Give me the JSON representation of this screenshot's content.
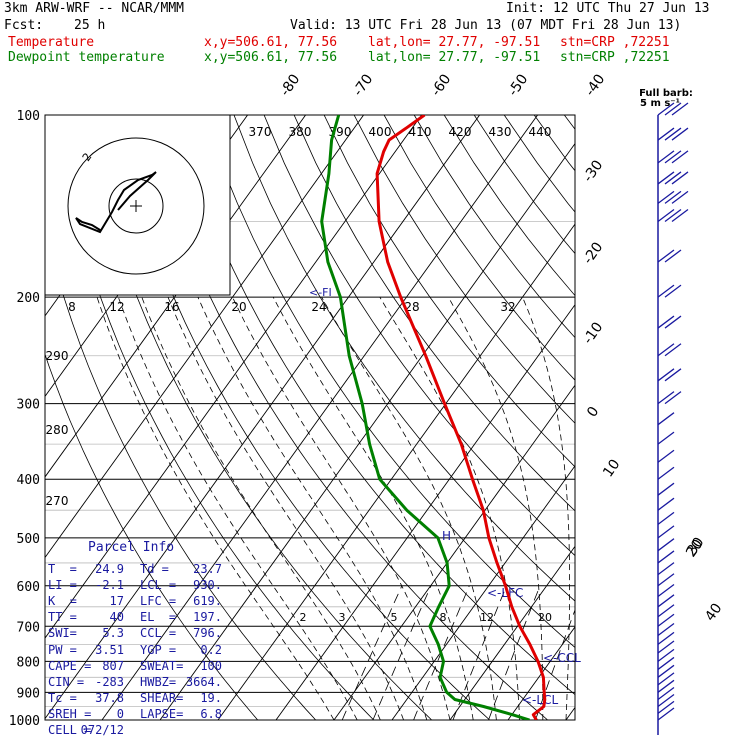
{
  "header": {
    "model": "3km ARW-WRF -- NCAR/MMM",
    "init": "Init: 12 UTC Thu 27 Jun 13",
    "fcst_label": "Fcst:",
    "fcst_value": "25 h",
    "valid": "Valid: 13 UTC Fri 28 Jun 13 (07 MDT Fri 28 Jun 13)",
    "temp_line": "Temperature",
    "dew_line": "Dewpoint temperature",
    "xy": "x,y=506.61, 77.56",
    "latlon": "lat,lon= 27.77, -97.51",
    "stn": "stn=CRP ,72251"
  },
  "colors": {
    "temperature": "#e00000",
    "dewpoint": "#008000",
    "parcel_text": "#1a1aa0",
    "grid": "#000000"
  },
  "chart_data": {
    "type": "line",
    "title": "",
    "pressure_labels": [
      "100",
      "200",
      "300",
      "400",
      "500",
      "600",
      "700",
      "800",
      "900",
      "1000"
    ],
    "temperature_top_labels": [
      "-80",
      "-70",
      "-60",
      "-50",
      "-40"
    ],
    "temperature_right_labels": [
      "-30",
      "-20",
      "-10",
      "0",
      "10",
      "20",
      "30",
      "40"
    ],
    "theta_labels": [
      "370",
      "380",
      "390",
      "400",
      "410",
      "420",
      "430",
      "440"
    ],
    "theta_left_labels": [
      "290",
      "280",
      "270"
    ],
    "mixing_ratio_labels": [
      "2",
      "3",
      "5",
      "8",
      "12",
      "20"
    ],
    "hodo_kts_label": "kts",
    "hodo_speed_labels": [
      "8",
      "12",
      "16",
      "20",
      "24",
      "28",
      "32"
    ],
    "hodo_ring_label": "2",
    "freezing_label": "<-FI",
    "lfc_label": "<-LFC",
    "ccl_label": "<-CCL",
    "lcl_label": "<-LCL",
    "h_label": "H",
    "barb_legend_line1": "Full barb:",
    "barb_legend_line2": "5 m s⁻¹",
    "series": [
      {
        "name": "Temperature",
        "color": "#e00000",
        "points": [
          [
            1000,
            24.9
          ],
          [
            980,
            23.7
          ],
          [
            950,
            24.5
          ],
          [
            925,
            23.8
          ],
          [
            900,
            22.8
          ],
          [
            850,
            20.8
          ],
          [
            800,
            17.9
          ],
          [
            750,
            14.4
          ],
          [
            700,
            10.4
          ],
          [
            650,
            6.6
          ],
          [
            600,
            2.9
          ],
          [
            550,
            -1.4
          ],
          [
            500,
            -5.9
          ],
          [
            450,
            -10.3
          ],
          [
            400,
            -16.0
          ],
          [
            350,
            -22.3
          ],
          [
            300,
            -30.2
          ],
          [
            250,
            -39.4
          ],
          [
            200,
            -51.0
          ],
          [
            175,
            -57.6
          ],
          [
            150,
            -64.1
          ],
          [
            125,
            -70.4
          ],
          [
            115,
            -72.0
          ],
          [
            110,
            -72.5
          ],
          [
            105,
            -71.0
          ],
          [
            100,
            -69.5
          ]
        ]
      },
      {
        "name": "Dewpoint temperature",
        "color": "#008000",
        "points": [
          [
            1000,
            23.7
          ],
          [
            980,
            20.1
          ],
          [
            950,
            14.1
          ],
          [
            925,
            8.3
          ],
          [
            900,
            6.0
          ],
          [
            850,
            3.0
          ],
          [
            800,
            1.6
          ],
          [
            750,
            -1.4
          ],
          [
            700,
            -5.1
          ],
          [
            650,
            -6.0
          ],
          [
            600,
            -6.8
          ],
          [
            550,
            -10.0
          ],
          [
            500,
            -14.7
          ],
          [
            450,
            -23.5
          ],
          [
            400,
            -32.0
          ],
          [
            350,
            -38.1
          ],
          [
            300,
            -44.4
          ],
          [
            250,
            -52.6
          ],
          [
            200,
            -61.4
          ],
          [
            175,
            -67.9
          ],
          [
            150,
            -74.0
          ],
          [
            125,
            -78.7
          ],
          [
            110,
            -82.4
          ],
          [
            100,
            -84.3
          ]
        ]
      }
    ],
    "parcel_path": [
      [
        1000,
        24.9
      ],
      [
        945,
        23.7
      ],
      [
        900,
        21.8
      ],
      [
        850,
        19.6
      ],
      [
        800,
        17.2
      ],
      [
        750,
        14.5
      ],
      [
        700,
        11.4
      ],
      [
        650,
        8.0
      ],
      [
        600,
        4.3
      ],
      [
        550,
        0.0
      ],
      [
        500,
        -4.7
      ],
      [
        450,
        -10.3
      ],
      [
        400,
        -16.8
      ],
      [
        350,
        -24.4
      ],
      [
        300,
        -33.3
      ],
      [
        250,
        -43.7
      ],
      [
        200,
        -56.0
      ]
    ],
    "hodograph_trace_note": "",
    "wind_barbs_pressures": [
      100,
      110,
      120,
      130,
      140,
      150,
      175,
      200,
      225,
      250,
      275,
      300,
      325,
      350,
      375,
      400,
      425,
      450,
      475,
      500,
      525,
      550,
      575,
      600,
      625,
      650,
      675,
      700,
      725,
      750,
      775,
      800,
      825,
      850,
      875,
      900,
      925,
      950,
      975,
      1000
    ]
  },
  "parcel_info": {
    "title": "Parcel Info",
    "rows": [
      [
        "T  =",
        "24.9",
        "Td =",
        "23.7"
      ],
      [
        "LI =",
        "-2.1",
        "LCL =",
        "930."
      ],
      [
        "K  =",
        "17",
        "LFC =",
        "619."
      ],
      [
        "TT =",
        "40",
        "EL  =",
        "197."
      ],
      [
        "SWI=",
        "5.3",
        "CCL =",
        "796."
      ],
      [
        "PW =",
        "3.51",
        "YGP =",
        "0.2"
      ],
      [
        "CAPE =",
        "807",
        "SWEAT=",
        "100"
      ],
      [
        "CIN =",
        "-283",
        "HWBZ=",
        "3664."
      ],
      [
        "Tc =",
        "37.8",
        "SHEAR=",
        "19."
      ],
      [
        "SREH =",
        "0",
        "LAPSE=",
        "6.8"
      ],
      [
        "CELL =",
        "072/12",
        "",
        ""
      ]
    ]
  }
}
